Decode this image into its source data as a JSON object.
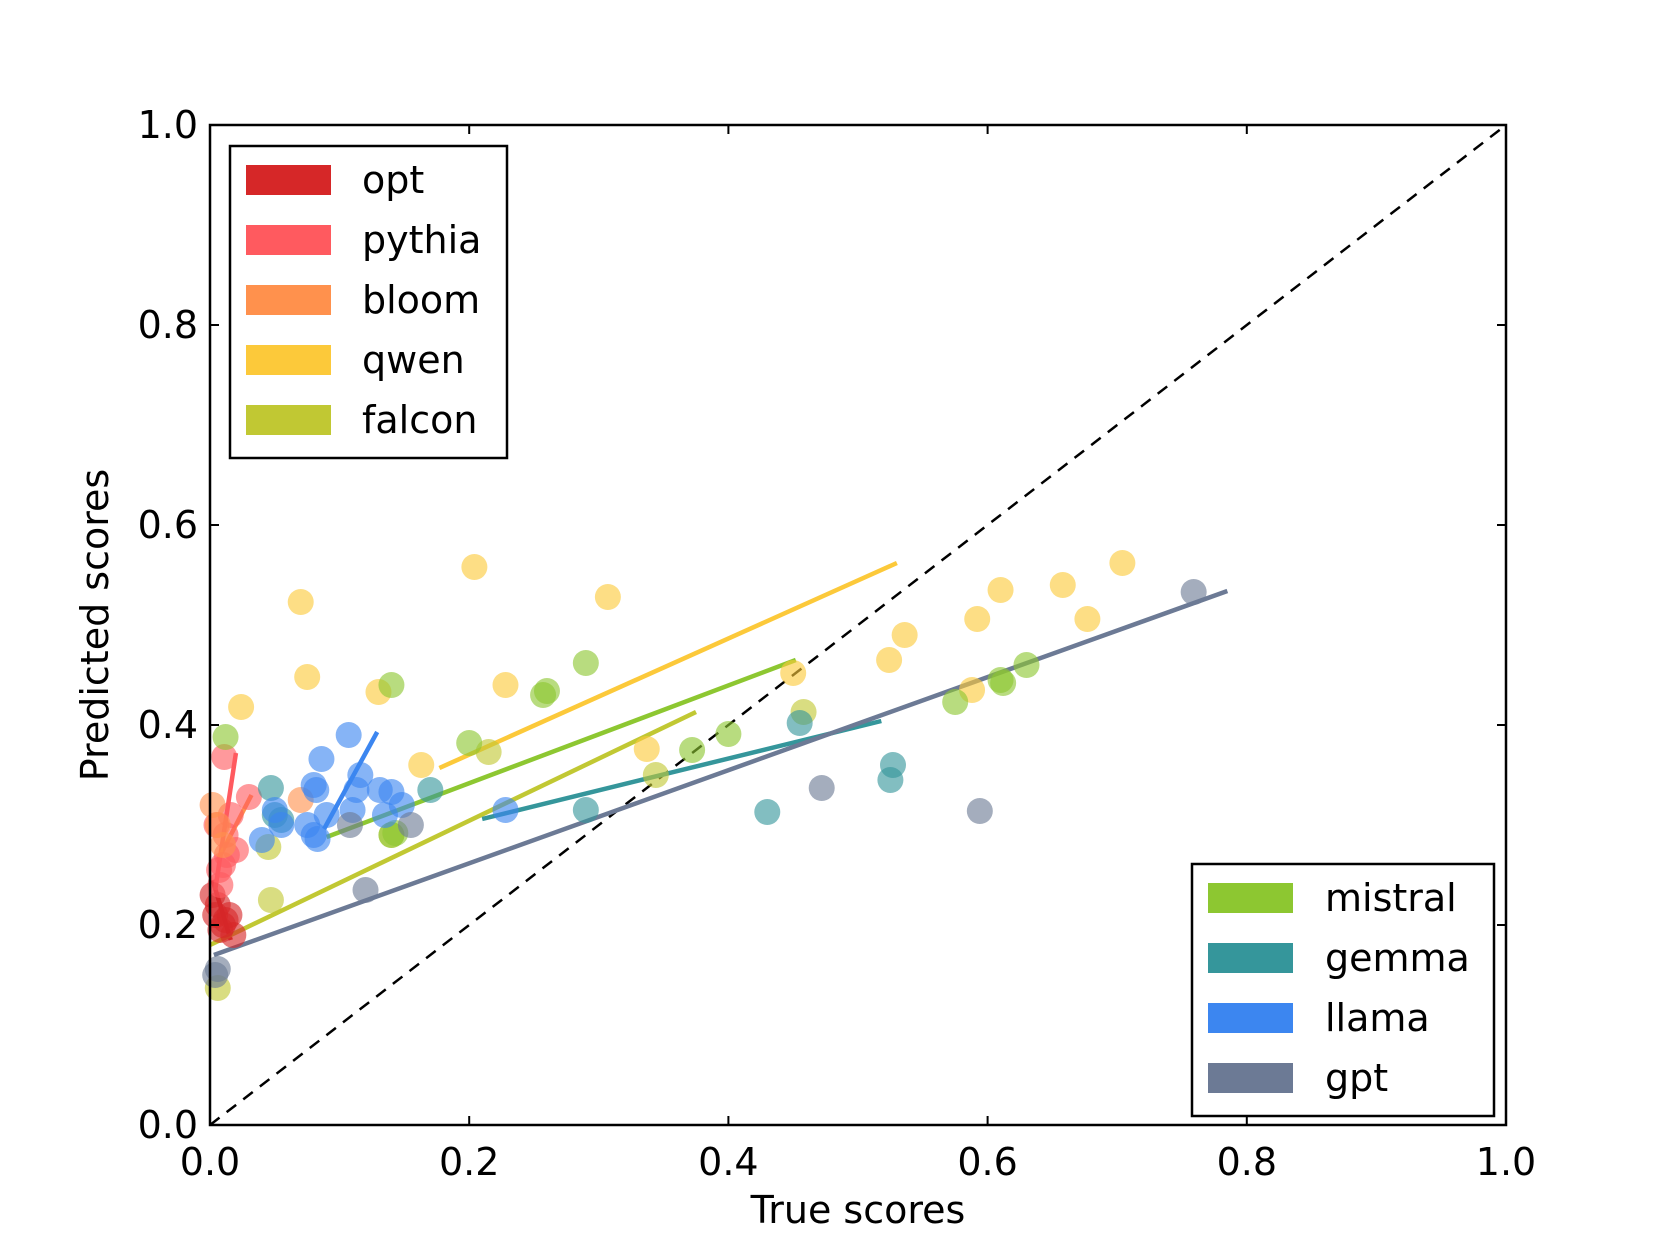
{
  "chart_data": {
    "type": "scatter",
    "title": "",
    "xlabel": "True scores",
    "ylabel": "Predicted scores",
    "xlim": [
      0.0,
      1.0
    ],
    "ylim": [
      0.0,
      1.0
    ],
    "xticks": [
      "0.0",
      "0.2",
      "0.4",
      "0.6",
      "0.8",
      "1.0"
    ],
    "yticks": [
      "0.0",
      "0.2",
      "0.4",
      "0.6",
      "0.8",
      "1.0"
    ],
    "grid": false,
    "reference_line": {
      "style": "dashed",
      "from": [
        0,
        0
      ],
      "to": [
        1,
        1
      ],
      "color": "#000000"
    },
    "legends": [
      {
        "placement": "top-left",
        "entries": [
          "opt",
          "pythia",
          "bloom",
          "qwen",
          "falcon"
        ]
      },
      {
        "placement": "bottom-right",
        "entries": [
          "mistral",
          "gemma",
          "llama",
          "gpt"
        ]
      }
    ],
    "series": [
      {
        "name": "opt",
        "color": "#d62728",
        "points": [
          [
            0.002,
            0.23
          ],
          [
            0.004,
            0.21
          ],
          [
            0.008,
            0.195
          ],
          [
            0.012,
            0.205
          ],
          [
            0.015,
            0.21
          ],
          [
            0.018,
            0.19
          ],
          [
            0.006,
            0.22
          ],
          [
            0.01,
            0.2
          ]
        ],
        "fit": [
          [
            0.002,
            0.245
          ],
          [
            0.016,
            0.185
          ]
        ]
      },
      {
        "name": "pythia",
        "color": "#ff5a5f",
        "points": [
          [
            0.011,
            0.368
          ],
          [
            0.03,
            0.328
          ],
          [
            0.02,
            0.275
          ],
          [
            0.01,
            0.26
          ],
          [
            0.008,
            0.24
          ],
          [
            0.012,
            0.29
          ],
          [
            0.016,
            0.31
          ],
          [
            0.005,
            0.3
          ],
          [
            0.013,
            0.27
          ],
          [
            0.007,
            0.255
          ]
        ],
        "fit": [
          [
            0.004,
            0.235
          ],
          [
            0.02,
            0.372
          ]
        ]
      },
      {
        "name": "bloom",
        "color": "#ff914d",
        "points": [
          [
            0.07,
            0.325
          ],
          [
            0.002,
            0.32
          ],
          [
            0.006,
            0.3
          ],
          [
            0.01,
            0.28
          ]
        ],
        "fit": [
          [
            0.006,
            0.265
          ],
          [
            0.032,
            0.33
          ]
        ]
      },
      {
        "name": "qwen",
        "color": "#fcc93a",
        "points": [
          [
            0.204,
            0.558
          ],
          [
            0.307,
            0.528
          ],
          [
            0.07,
            0.523
          ],
          [
            0.075,
            0.448
          ],
          [
            0.024,
            0.418
          ],
          [
            0.13,
            0.433
          ],
          [
            0.228,
            0.44
          ],
          [
            0.163,
            0.36
          ],
          [
            0.337,
            0.376
          ],
          [
            0.45,
            0.452
          ],
          [
            0.524,
            0.465
          ],
          [
            0.536,
            0.49
          ],
          [
            0.588,
            0.435
          ],
          [
            0.592,
            0.506
          ],
          [
            0.61,
            0.535
          ],
          [
            0.658,
            0.54
          ],
          [
            0.677,
            0.506
          ],
          [
            0.704,
            0.562
          ]
        ],
        "fit": [
          [
            0.177,
            0.357
          ],
          [
            0.53,
            0.562
          ]
        ]
      },
      {
        "name": "falcon",
        "color": "#c1c833",
        "points": [
          [
            0.045,
            0.278
          ],
          [
            0.047,
            0.225
          ],
          [
            0.006,
            0.137
          ],
          [
            0.14,
            0.29
          ],
          [
            0.215,
            0.373
          ],
          [
            0.344,
            0.35
          ],
          [
            0.458,
            0.413
          ]
        ],
        "fit": [
          [
            0.0,
            0.18
          ],
          [
            0.375,
            0.413
          ]
        ]
      },
      {
        "name": "mistral",
        "color": "#8dc731",
        "points": [
          [
            0.012,
            0.388
          ],
          [
            0.14,
            0.44
          ],
          [
            0.2,
            0.382
          ],
          [
            0.257,
            0.43
          ],
          [
            0.26,
            0.434
          ],
          [
            0.29,
            0.462
          ],
          [
            0.372,
            0.375
          ],
          [
            0.4,
            0.391
          ],
          [
            0.14,
            0.29
          ],
          [
            0.143,
            0.292
          ],
          [
            0.575,
            0.423
          ],
          [
            0.61,
            0.445
          ],
          [
            0.612,
            0.442
          ],
          [
            0.63,
            0.46
          ]
        ],
        "fit": [
          [
            0.09,
            0.288
          ],
          [
            0.452,
            0.465
          ]
        ]
      },
      {
        "name": "gemma",
        "color": "#35969b",
        "points": [
          [
            0.047,
            0.337
          ],
          [
            0.05,
            0.31
          ],
          [
            0.055,
            0.305
          ],
          [
            0.17,
            0.335
          ],
          [
            0.29,
            0.315
          ],
          [
            0.43,
            0.313
          ],
          [
            0.455,
            0.402
          ],
          [
            0.525,
            0.345
          ],
          [
            0.527,
            0.36
          ]
        ],
        "fit": [
          [
            0.21,
            0.306
          ],
          [
            0.518,
            0.404
          ]
        ]
      },
      {
        "name": "llama",
        "color": "#3c86f0",
        "points": [
          [
            0.107,
            0.39
          ],
          [
            0.086,
            0.366
          ],
          [
            0.08,
            0.34
          ],
          [
            0.116,
            0.35
          ],
          [
            0.082,
            0.335
          ],
          [
            0.09,
            0.31
          ],
          [
            0.113,
            0.335
          ],
          [
            0.131,
            0.335
          ],
          [
            0.14,
            0.333
          ],
          [
            0.148,
            0.32
          ],
          [
            0.075,
            0.3
          ],
          [
            0.08,
            0.29
          ],
          [
            0.083,
            0.286
          ],
          [
            0.05,
            0.315
          ],
          [
            0.055,
            0.3
          ],
          [
            0.04,
            0.285
          ],
          [
            0.11,
            0.315
          ],
          [
            0.135,
            0.31
          ],
          [
            0.228,
            0.315
          ]
        ],
        "fit": [
          [
            0.088,
            0.296
          ],
          [
            0.129,
            0.393
          ]
        ]
      },
      {
        "name": "gpt",
        "color": "#6c7a95",
        "points": [
          [
            0.759,
            0.533
          ],
          [
            0.006,
            0.156
          ],
          [
            0.004,
            0.15
          ],
          [
            0.12,
            0.235
          ],
          [
            0.108,
            0.3
          ],
          [
            0.155,
            0.3
          ],
          [
            0.472,
            0.337
          ],
          [
            0.594,
            0.314
          ]
        ],
        "fit": [
          [
            0.003,
            0.17
          ],
          [
            0.785,
            0.534
          ]
        ]
      }
    ]
  }
}
